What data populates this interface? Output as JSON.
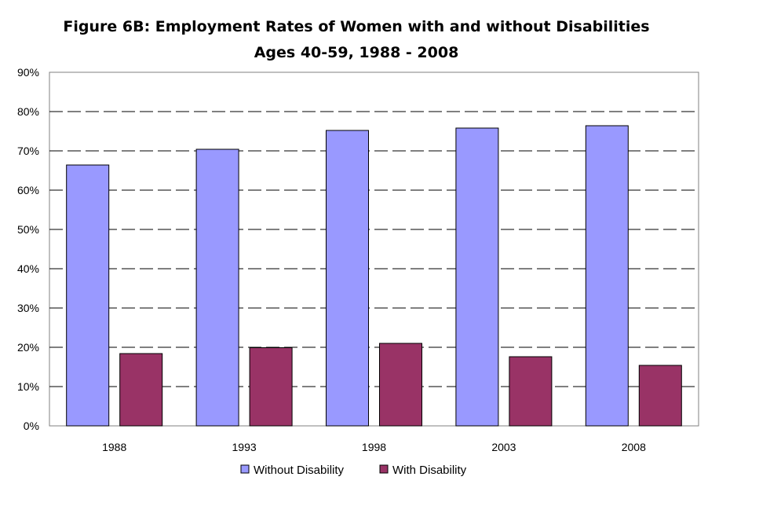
{
  "chart_data": {
    "type": "bar",
    "title": "Figure 6B: Employment Rates of Women with and without Disabilities",
    "subtitle": "Ages 40-59, 1988 - 2008",
    "categories": [
      "1988",
      "1993",
      "1998",
      "2003",
      "2008"
    ],
    "series": [
      {
        "name": "Without Disability",
        "color": "#9999ff",
        "values": [
          66.4,
          70.4,
          75.2,
          75.8,
          76.4
        ]
      },
      {
        "name": "With Disability",
        "color": "#993366",
        "values": [
          18.4,
          19.9,
          21.0,
          17.6,
          15.4
        ]
      }
    ],
    "ylim": [
      0,
      90
    ],
    "y_ticks": [
      "0%",
      "10%",
      "20%",
      "30%",
      "40%",
      "50%",
      "60%",
      "70%",
      "80%",
      "90%"
    ],
    "grid": true,
    "grid_style": "dashed",
    "legend_position": "bottom",
    "xlabel": "",
    "ylabel": ""
  }
}
